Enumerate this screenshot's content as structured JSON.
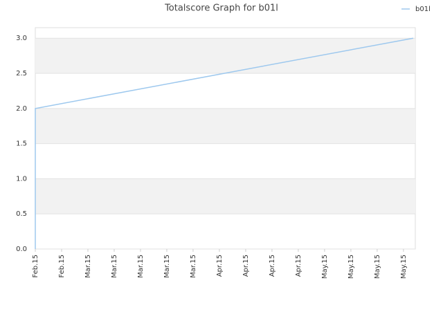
{
  "chart_data": {
    "type": "line",
    "title": "Totalscore Graph for b01l",
    "series": [
      {
        "name": "b01l",
        "color": "#9dc8ee",
        "x": [
          0,
          0,
          14.37
        ],
        "values": [
          0,
          2.0,
          3.0
        ]
      }
    ],
    "xlim": [
      0,
      14.45
    ],
    "xticks": [
      {
        "value": 0,
        "label": "Feb.15"
      },
      {
        "value": 1,
        "label": "Feb.15"
      },
      {
        "value": 2,
        "label": "Mar.15"
      },
      {
        "value": 3,
        "label": "Mar.15"
      },
      {
        "value": 4,
        "label": "Mar.15"
      },
      {
        "value": 5,
        "label": "Mar.15"
      },
      {
        "value": 6,
        "label": "Mar.15"
      },
      {
        "value": 7,
        "label": "Apr.15"
      },
      {
        "value": 8,
        "label": "Apr.15"
      },
      {
        "value": 9,
        "label": "Apr.15"
      },
      {
        "value": 10,
        "label": "Apr.15"
      },
      {
        "value": 11,
        "label": "May.15"
      },
      {
        "value": 12,
        "label": "May.15"
      },
      {
        "value": 13,
        "label": "May.15"
      },
      {
        "value": 14,
        "label": "May.15"
      }
    ],
    "ylim": [
      0,
      3.15
    ],
    "yticks": [
      {
        "value": 0,
        "label": "0.0"
      },
      {
        "value": 0.5,
        "label": "0.5"
      },
      {
        "value": 1,
        "label": "1.0"
      },
      {
        "value": 1.5,
        "label": "1.5"
      },
      {
        "value": 2,
        "label": "2.0"
      },
      {
        "value": 2.5,
        "label": "2.5"
      },
      {
        "value": 3,
        "label": "3.0"
      }
    ],
    "grid": true,
    "legend": "top-right"
  }
}
